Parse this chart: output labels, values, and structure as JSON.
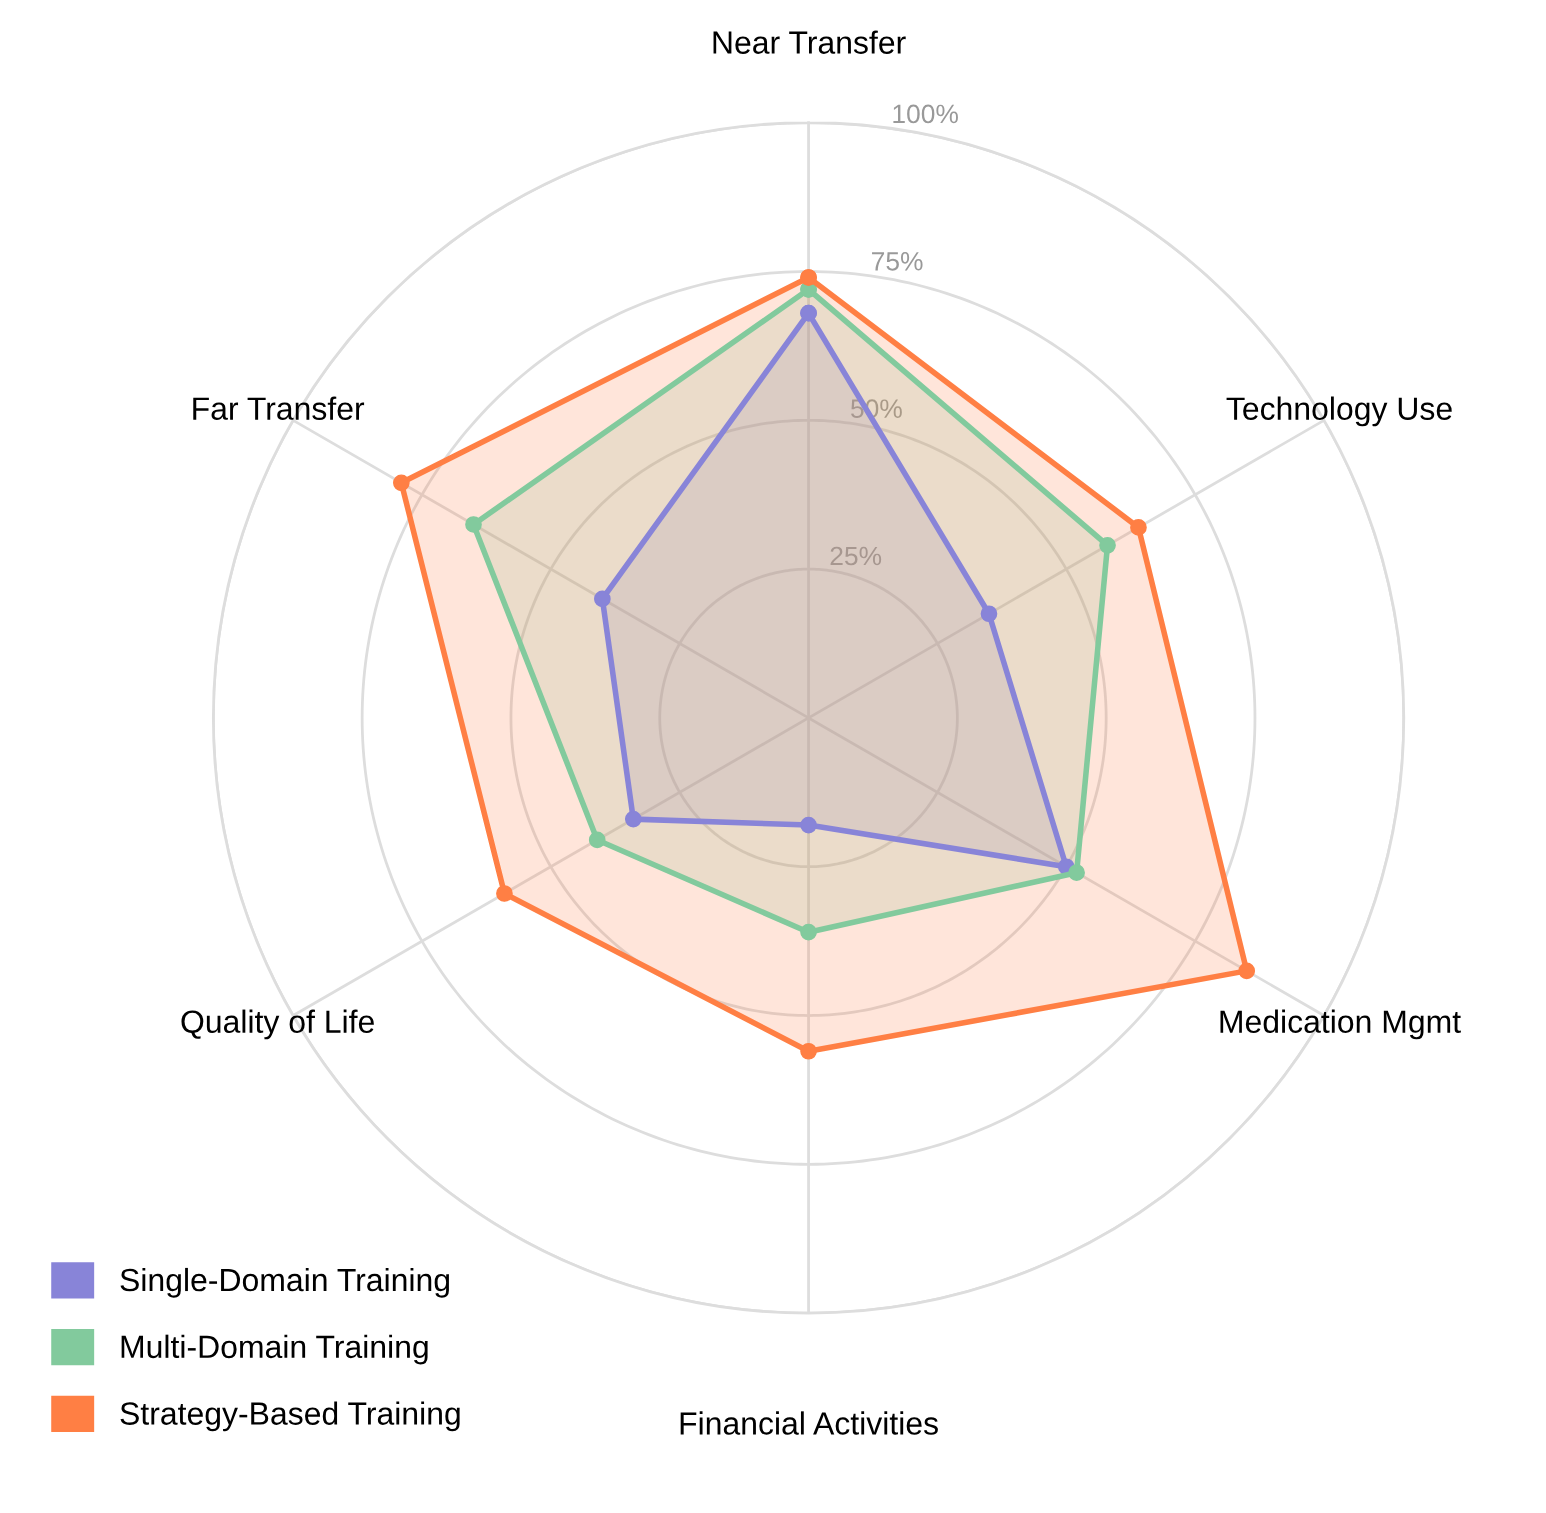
{
  "chart_data": {
    "type": "radar",
    "categories": [
      "Near Transfer",
      "Technology Use",
      "Medication Mgmt",
      "Financial Activities",
      "Quality of Life",
      "Far Transfer"
    ],
    "series": [
      {
        "name": "Single-Domain Training",
        "color": "#8884d8",
        "values": [
          68,
          35,
          50,
          18,
          34,
          40
        ]
      },
      {
        "name": "Multi-Domain Training",
        "color": "#82ca9d",
        "values": [
          72,
          58,
          52,
          36,
          41,
          65
        ]
      },
      {
        "name": "Strategy-Based Training",
        "color": "#ff7f44",
        "values": [
          74,
          64,
          85,
          56,
          59,
          79
        ]
      }
    ],
    "ylim": [
      0,
      100
    ],
    "yticks": [
      {
        "value": 25,
        "label": "25%"
      },
      {
        "value": 50,
        "label": "50%"
      },
      {
        "value": 75,
        "label": "75%"
      },
      {
        "value": 100,
        "label": "100%"
      }
    ],
    "grid": true,
    "legend": "bottom left",
    "marker": "circle",
    "line_style": "solid"
  }
}
